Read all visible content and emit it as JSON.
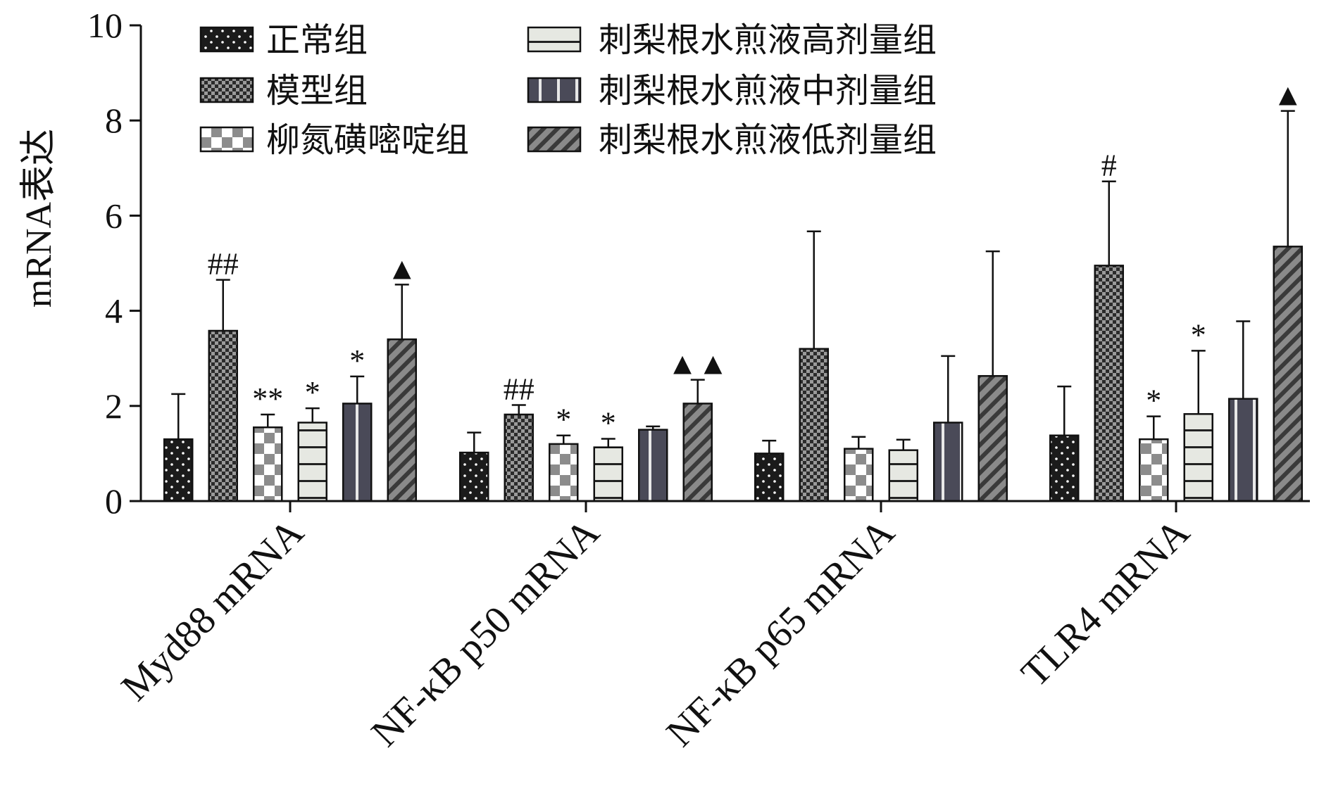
{
  "chart_data": {
    "type": "bar",
    "title": "",
    "xlabel": "",
    "ylabel": "mRNA表达",
    "ylim": [
      0,
      10
    ],
    "yticks": [
      "0",
      "2",
      "4",
      "6",
      "8",
      "10"
    ],
    "grid": false,
    "legend_position": "top-left, two columns",
    "categories": [
      "Myd88 mRNA",
      "NF-κB p50 mRNA",
      "NF-κB p65 mRNA",
      "TLR4 mRNA"
    ],
    "series": [
      {
        "name": "正常组",
        "pattern": "dots",
        "values": [
          1.3,
          1.02,
          1.0,
          1.38
        ],
        "errors": [
          0.95,
          0.42,
          0.27,
          1.03
        ],
        "annotations": [
          "",
          "",
          "",
          ""
        ]
      },
      {
        "name": "模型组",
        "pattern": "checker-small",
        "values": [
          3.58,
          1.82,
          3.2,
          4.95
        ],
        "errors": [
          1.07,
          0.2,
          2.47,
          1.77
        ],
        "annotations": [
          "##",
          "##",
          "",
          "#"
        ]
      },
      {
        "name": "柳氮磺嘧啶组",
        "pattern": "checker-large",
        "values": [
          1.55,
          1.2,
          1.1,
          1.3
        ],
        "errors": [
          0.27,
          0.18,
          0.25,
          0.48
        ],
        "annotations": [
          "**",
          "*",
          "",
          "*"
        ]
      },
      {
        "name": "刺梨根水煎液高剂量组",
        "pattern": "horizontal-lines",
        "values": [
          1.65,
          1.13,
          1.07,
          1.83
        ],
        "errors": [
          0.3,
          0.18,
          0.22,
          1.33
        ],
        "annotations": [
          "*",
          "*",
          "",
          "*"
        ]
      },
      {
        "name": "刺梨根水煎液中剂量组",
        "pattern": "vertical-lines",
        "values": [
          2.05,
          1.5,
          1.65,
          2.15
        ],
        "errors": [
          0.57,
          0.07,
          1.4,
          1.63
        ],
        "annotations": [
          "*",
          "",
          "",
          ""
        ]
      },
      {
        "name": "刺梨根水煎液低剂量组",
        "pattern": "diagonal-lines",
        "values": [
          3.4,
          2.05,
          2.63,
          5.35
        ],
        "errors": [
          1.15,
          0.5,
          2.62,
          2.85
        ],
        "annotations": [
          "▲",
          "▲▲",
          "",
          "▲"
        ]
      }
    ]
  }
}
